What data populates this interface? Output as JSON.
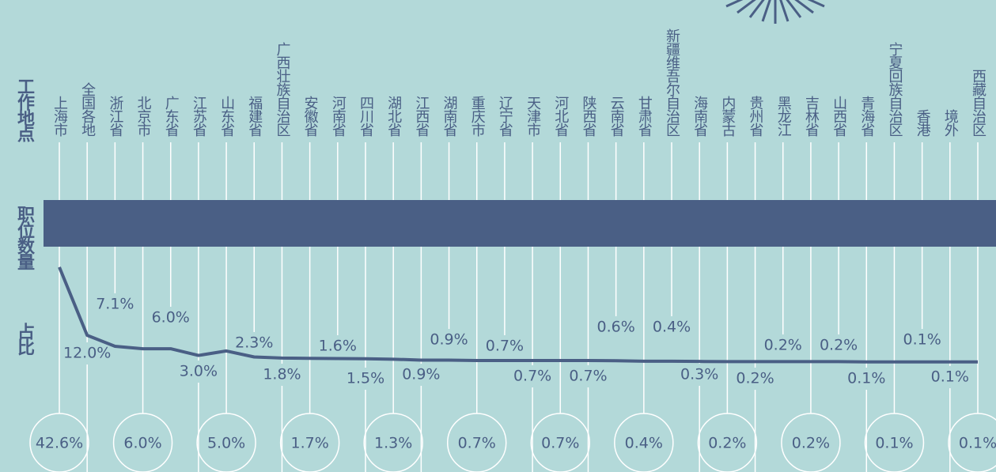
{
  "chart_data": {
    "type": "line",
    "row_labels": [
      "工作地点",
      "职位数量",
      "占比"
    ],
    "categories": [
      "上海市",
      "全国各地",
      "浙江省",
      "北京市",
      "广东省",
      "江苏省",
      "山东省",
      "福建省",
      "广西壮族自治区",
      "安徽省",
      "河南省",
      "四川省",
      "湖北省",
      "江西省",
      "湖南省",
      "重庆市",
      "辽宁省",
      "天津市",
      "河北省",
      "陕西省",
      "云南省",
      "甘肃省",
      "新疆维吾尔自治区",
      "海南省",
      "内蒙古",
      "贵州省",
      "黑龙江",
      "吉林省",
      "山西省",
      "青海省",
      "宁夏回族自治区",
      "香港",
      "境外",
      "西藏自治区"
    ],
    "values": [
      42.6,
      12.0,
      7.1,
      6.0,
      6.0,
      3.0,
      5.0,
      2.3,
      1.8,
      1.7,
      1.6,
      1.5,
      1.3,
      0.9,
      0.9,
      0.7,
      0.7,
      0.7,
      0.7,
      0.7,
      0.6,
      0.4,
      0.4,
      0.3,
      0.2,
      0.2,
      0.2,
      0.2,
      0.2,
      0.1,
      0.1,
      0.1,
      0.1,
      0.1
    ],
    "value_labels": [
      "42.6%",
      "12.0%",
      "7.1%",
      "6.0%",
      "6.0%",
      "3.0%",
      "5.0%",
      "2.3%",
      "1.8%",
      "1.7%",
      "1.6%",
      "1.5%",
      "1.3%",
      "0.9%",
      "0.9%",
      "0.7%",
      "0.7%",
      "0.7%",
      "0.7%",
      "0.7%",
      "0.6%",
      "0.4%",
      "0.4%",
      "0.3%",
      "0.2%",
      "0.2%",
      "0.2%",
      "0.2%",
      "0.2%",
      "0.1%",
      "0.1%",
      "0.1%",
      "0.1%",
      "0.1%"
    ],
    "color": "#4a5f85"
  }
}
